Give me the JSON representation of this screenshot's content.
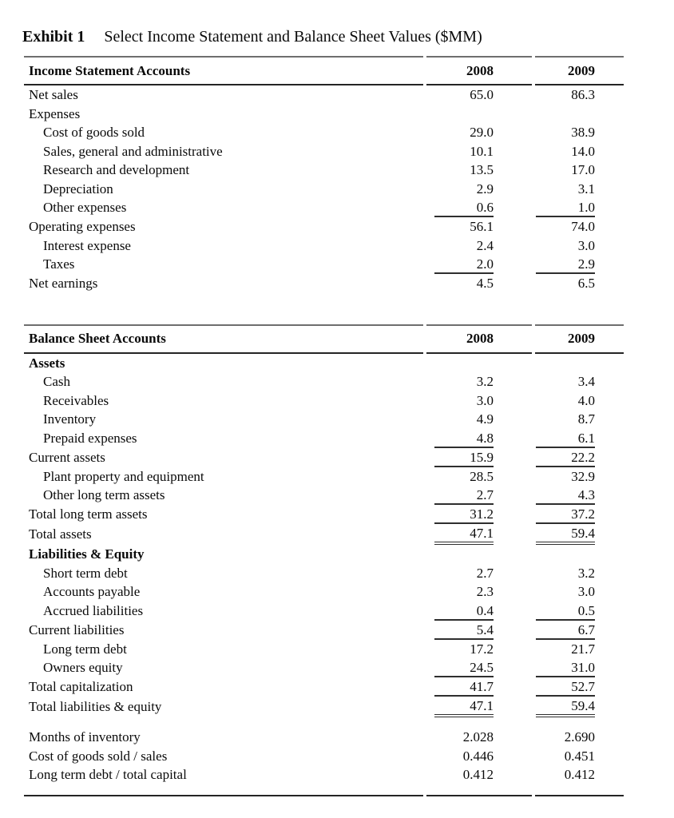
{
  "title": {
    "exhibit_label": "Exhibit 1",
    "subtitle": "Select Income Statement and Balance Sheet Values ($MM)"
  },
  "columns": {
    "year1": "2008",
    "year2": "2009"
  },
  "income_statement": {
    "header_label": "Income Statement Accounts",
    "rows": [
      {
        "label": "Net sales",
        "indent": 0,
        "y2008": "65.0",
        "y2009": "86.3",
        "rule": "none"
      },
      {
        "label": "Expenses",
        "indent": 0,
        "y2008": "",
        "y2009": "",
        "rule": "none"
      },
      {
        "label": "Cost of goods sold",
        "indent": 1,
        "y2008": "29.0",
        "y2009": "38.9",
        "rule": "none"
      },
      {
        "label": "Sales, general and administrative",
        "indent": 1,
        "y2008": "10.1",
        "y2009": "14.0",
        "rule": "none"
      },
      {
        "label": "Research and development",
        "indent": 1,
        "y2008": "13.5",
        "y2009": "17.0",
        "rule": "none"
      },
      {
        "label": "Depreciation",
        "indent": 1,
        "y2008": "2.9",
        "y2009": "3.1",
        "rule": "none"
      },
      {
        "label": "Other expenses",
        "indent": 1,
        "y2008": "0.6",
        "y2009": "1.0",
        "rule": "single"
      },
      {
        "label": "Operating expenses",
        "indent": 0,
        "y2008": "56.1",
        "y2009": "74.0",
        "rule": "none"
      },
      {
        "label": "Interest expense",
        "indent": 1,
        "y2008": "2.4",
        "y2009": "3.0",
        "rule": "none"
      },
      {
        "label": "Taxes",
        "indent": 1,
        "y2008": "2.0",
        "y2009": "2.9",
        "rule": "single"
      },
      {
        "label": "Net earnings",
        "indent": 0,
        "y2008": "4.5",
        "y2009": "6.5",
        "rule": "none"
      }
    ]
  },
  "balance_sheet": {
    "header_label": "Balance Sheet Accounts",
    "rows": [
      {
        "label": "Assets",
        "indent": 0,
        "bold": true,
        "y2008": "",
        "y2009": "",
        "rule": "none"
      },
      {
        "label": "Cash",
        "indent": 1,
        "y2008": "3.2",
        "y2009": "3.4",
        "rule": "none"
      },
      {
        "label": "Receivables",
        "indent": 1,
        "y2008": "3.0",
        "y2009": "4.0",
        "rule": "none"
      },
      {
        "label": "Inventory",
        "indent": 1,
        "y2008": "4.9",
        "y2009": "8.7",
        "rule": "none"
      },
      {
        "label": "Prepaid expenses",
        "indent": 1,
        "y2008": "4.8",
        "y2009": "6.1",
        "rule": "single"
      },
      {
        "label": "Current assets",
        "indent": 0,
        "y2008": "15.9",
        "y2009": "22.2",
        "rule": "single"
      },
      {
        "label": "Plant property and equipment",
        "indent": 1,
        "y2008": "28.5",
        "y2009": "32.9",
        "rule": "none"
      },
      {
        "label": "Other long term assets",
        "indent": 1,
        "y2008": "2.7",
        "y2009": "4.3",
        "rule": "single"
      },
      {
        "label": "Total long term assets",
        "indent": 0,
        "y2008": "31.2",
        "y2009": "37.2",
        "rule": "single"
      },
      {
        "label": "Total assets",
        "indent": 0,
        "y2008": "47.1",
        "y2009": "59.4",
        "rule": "double"
      },
      {
        "label": "Liabilities & Equity",
        "indent": 0,
        "bold": true,
        "y2008": "",
        "y2009": "",
        "rule": "none"
      },
      {
        "label": "Short term debt",
        "indent": 1,
        "y2008": "2.7",
        "y2009": "3.2",
        "rule": "none"
      },
      {
        "label": "Accounts payable",
        "indent": 1,
        "y2008": "2.3",
        "y2009": "3.0",
        "rule": "none"
      },
      {
        "label": "Accrued liabilities",
        "indent": 1,
        "y2008": "0.4",
        "y2009": "0.5",
        "rule": "single"
      },
      {
        "label": "Current liabilities",
        "indent": 0,
        "y2008": "5.4",
        "y2009": "6.7",
        "rule": "single"
      },
      {
        "label": "Long term debt",
        "indent": 1,
        "y2008": "17.2",
        "y2009": "21.7",
        "rule": "none"
      },
      {
        "label": "Owners equity",
        "indent": 1,
        "y2008": "24.5",
        "y2009": "31.0",
        "rule": "single"
      },
      {
        "label": "Total capitalization",
        "indent": 0,
        "y2008": "41.7",
        "y2009": "52.7",
        "rule": "single"
      },
      {
        "label": "Total liabilities & equity",
        "indent": 0,
        "y2008": "47.1",
        "y2009": "59.4",
        "rule": "double"
      }
    ]
  },
  "ratios": {
    "rows": [
      {
        "label": "Months of inventory",
        "indent": 0,
        "y2008": "2.028",
        "y2009": "2.690",
        "rule": "none"
      },
      {
        "label": "Cost of goods sold / sales",
        "indent": 0,
        "y2008": "0.446",
        "y2009": "0.451",
        "rule": "none"
      },
      {
        "label": "Long term debt / total capital",
        "indent": 0,
        "y2008": "0.412",
        "y2009": "0.412",
        "rule": "none"
      }
    ]
  },
  "colors": {
    "rule_light": "#6e6e6e",
    "rule_dark": "#242424",
    "sum_line": "#2e2e2e",
    "text": "#0a0a0a",
    "background": "#ffffff"
  }
}
